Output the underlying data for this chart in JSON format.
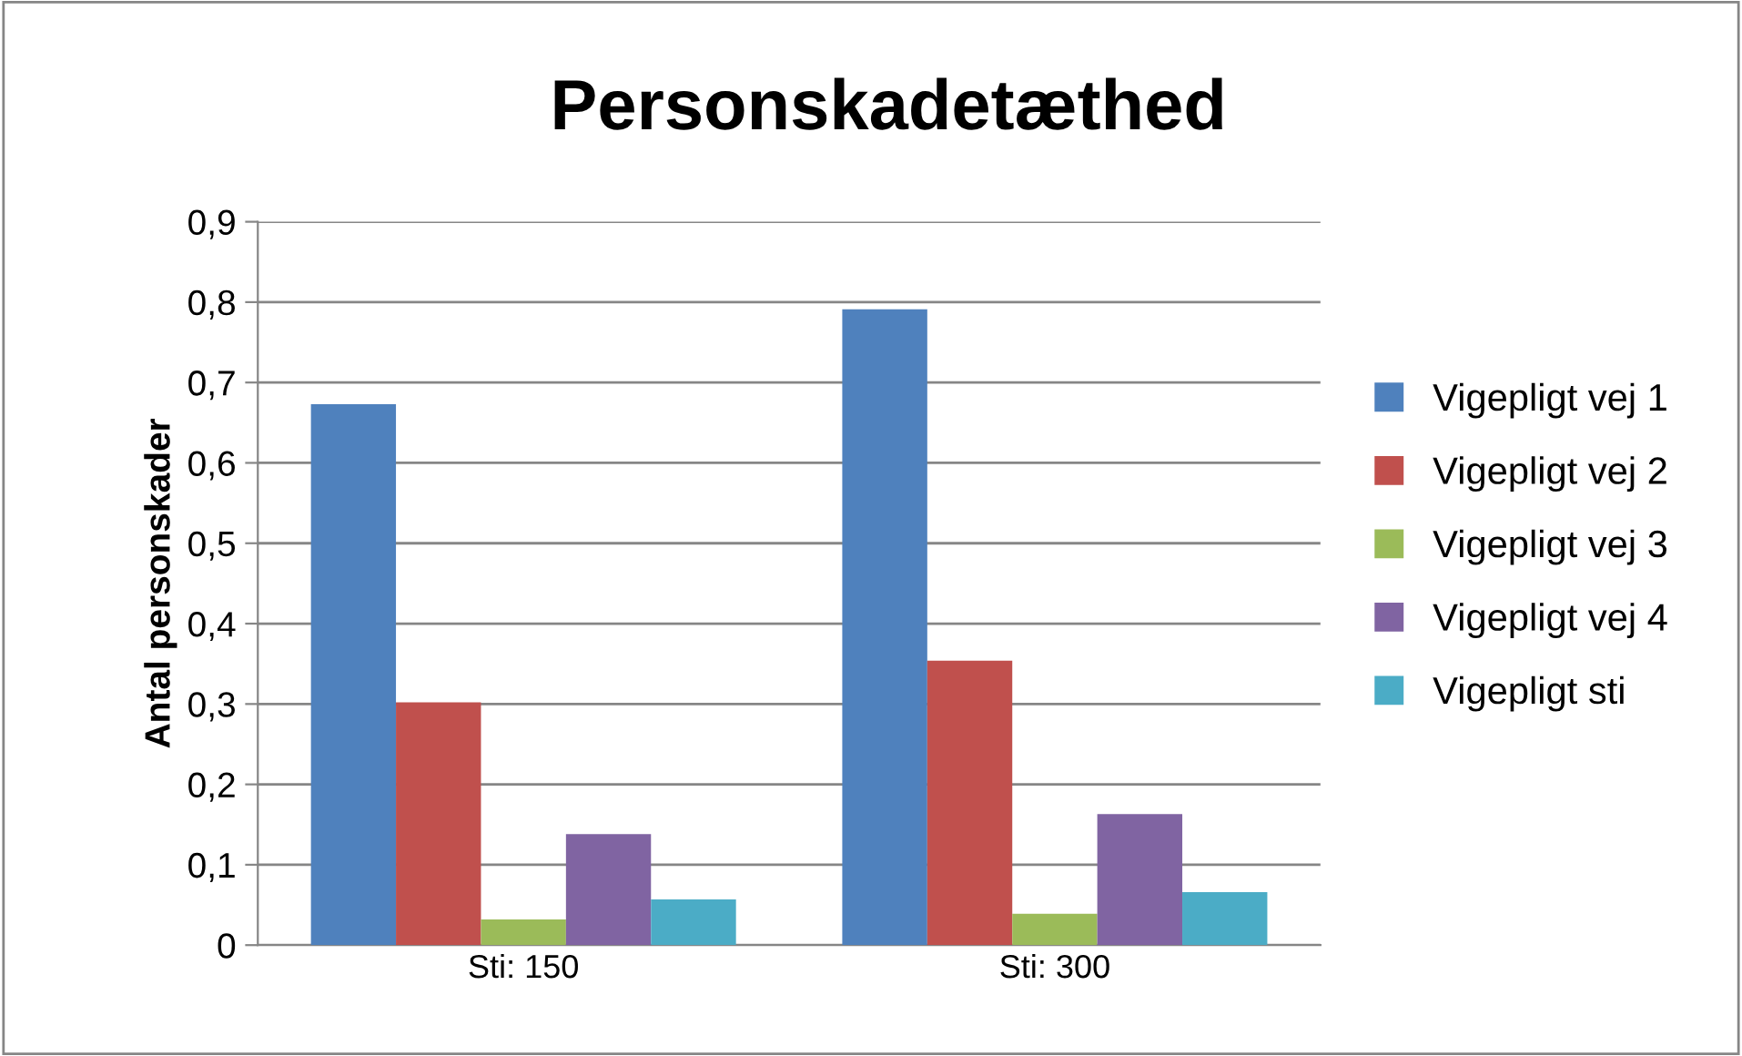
{
  "chart_data": {
    "type": "bar",
    "title": "Personskadetæthed",
    "ylabel": "Antal personskader",
    "categories": [
      "Sti: 150",
      "Sti: 300"
    ],
    "series": [
      {
        "name": "Vigepligt vej 1",
        "color": "#4f81bd",
        "values": [
          0.673,
          0.791
        ]
      },
      {
        "name": "Vigepligt vej 2",
        "color": "#c0504d",
        "values": [
          0.302,
          0.354
        ]
      },
      {
        "name": "Vigepligt vej 3",
        "color": "#9bbb59",
        "values": [
          0.032,
          0.039
        ]
      },
      {
        "name": "Vigepligt vej 4",
        "color": "#8064a2",
        "values": [
          0.138,
          0.163
        ]
      },
      {
        "name": "Vigepligt sti",
        "color": "#4bacc6",
        "values": [
          0.057,
          0.066
        ]
      }
    ],
    "ylim": [
      0,
      0.9
    ],
    "yticks": [
      0,
      {
        "value": 0.1,
        "label": "0,1"
      },
      {
        "value": 0.2,
        "label": "0,2"
      },
      {
        "value": 0.3,
        "label": "0,3"
      },
      {
        "value": 0.4,
        "label": "0,4"
      },
      {
        "value": 0.5,
        "label": "0,5"
      },
      {
        "value": 0.6,
        "label": "0,6"
      },
      {
        "value": 0.7,
        "label": "0,7"
      },
      {
        "value": 0.8,
        "label": "0,8"
      },
      {
        "value": 0.9,
        "label": "0,9"
      }
    ],
    "grid": "y",
    "legend": "right"
  }
}
